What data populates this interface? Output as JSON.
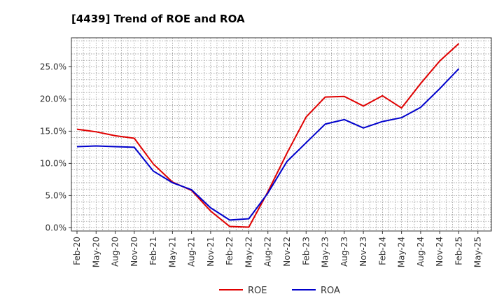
{
  "chart_data": {
    "type": "line",
    "title": "[4439]  Trend of ROE and ROA",
    "xlabel": "",
    "ylabel": "",
    "x": [
      "Feb-20",
      "May-20",
      "Aug-20",
      "Nov-20",
      "Feb-21",
      "May-21",
      "Aug-21",
      "Nov-21",
      "Feb-22",
      "May-22",
      "Aug-22",
      "Nov-22",
      "Feb-23",
      "May-23",
      "Aug-23",
      "Nov-23",
      "Feb-24",
      "May-24",
      "Aug-24",
      "Nov-24",
      "Feb-25",
      "May-25"
    ],
    "ylim": [
      -0.5,
      29.5
    ],
    "yticks": [
      0,
      5,
      10,
      15,
      20,
      25
    ],
    "ytick_labels": [
      "0.0%",
      "5.0%",
      "10.0%",
      "15.0%",
      "20.0%",
      "25.0%"
    ],
    "grid": true,
    "legend_position": "bottom-center",
    "series": [
      {
        "name": "ROE",
        "color": "#e00000",
        "values": [
          15.3,
          14.9,
          14.3,
          13.9,
          9.9,
          7.1,
          5.8,
          2.6,
          0.2,
          0.1,
          5.6,
          11.6,
          17.2,
          20.3,
          20.4,
          18.9,
          20.5,
          18.6,
          22.4,
          25.9,
          28.6,
          null
        ]
      },
      {
        "name": "ROA",
        "color": "#0000cc",
        "values": [
          12.6,
          12.7,
          12.6,
          12.5,
          8.8,
          7.0,
          5.9,
          3.1,
          1.2,
          1.4,
          5.4,
          10.3,
          13.2,
          16.1,
          16.8,
          15.5,
          16.5,
          17.1,
          18.7,
          21.6,
          24.7,
          null
        ]
      }
    ]
  }
}
